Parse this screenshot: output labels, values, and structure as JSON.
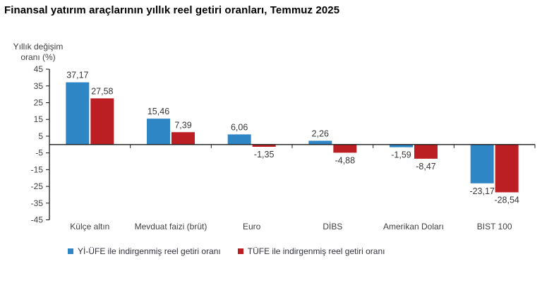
{
  "chart_data": {
    "type": "bar",
    "title": "Finansal yatırım araçlarının yıllık reel getiri oranları, Temmuz 2025",
    "y_axis_title_lines": [
      "Yıllık değişim",
      "oranı (%)"
    ],
    "categories": [
      "Külçe altın",
      "Mevduat faizi (brüt)",
      "Euro",
      "DİBS",
      "Amerikan Doları",
      "BIST 100"
    ],
    "series": [
      {
        "name": "Yİ-ÜFE ile indirgenmiş reel getiri oranı",
        "color": "#2E86C5",
        "values": [
          37.17,
          15.46,
          6.06,
          2.26,
          -1.59,
          -23.17
        ],
        "labels": [
          "37,17",
          "15,46",
          "6,06",
          "2,26",
          "-1,59",
          "-23,17"
        ]
      },
      {
        "name": "TÜFE ile indirgenmiş reel getiri oranı",
        "color": "#BB1F24",
        "values": [
          27.58,
          7.39,
          -1.35,
          -4.88,
          -8.47,
          -28.54
        ],
        "labels": [
          "27,58",
          "7,39",
          "-1,35",
          "-4,88",
          "-8,47",
          "-28,54"
        ]
      }
    ],
    "y_axis": {
      "min": -45,
      "max": 45,
      "step": 10
    },
    "legend_position": "bottom",
    "grid": false
  },
  "colors": {
    "axis": "#1a1a1a",
    "tick_text": "#3f3f3f",
    "value_text": "#363636",
    "category_text": "#3f3f3f"
  }
}
